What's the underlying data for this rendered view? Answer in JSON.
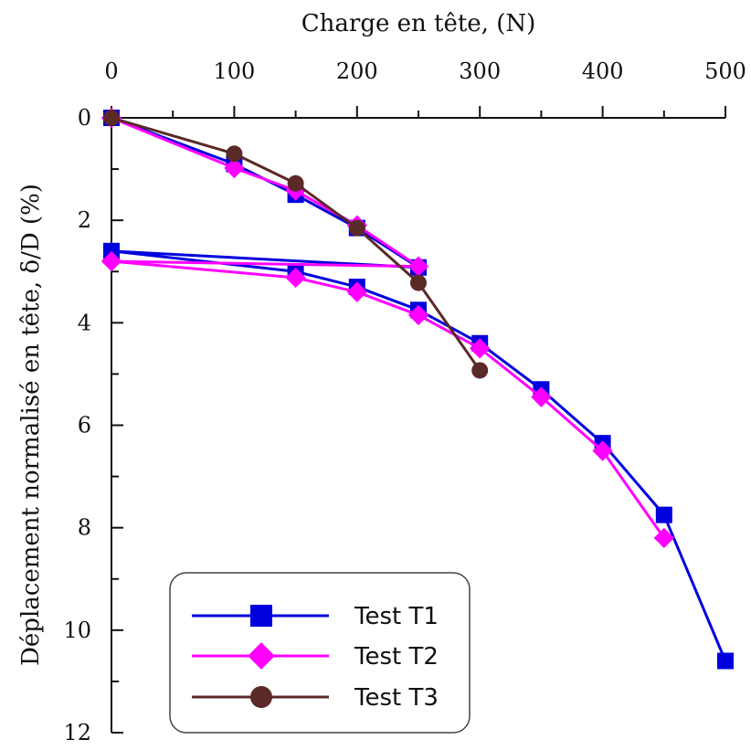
{
  "chart_data": {
    "type": "line",
    "xlabel": "Charge en tête, (N)",
    "ylabel": "Déplacement normalisé en tête, δ/D (%)",
    "xlim": [
      0,
      500
    ],
    "ylim": [
      0,
      12
    ],
    "y_inverted": true,
    "x_axis_position": "top",
    "x_ticks": [
      0,
      100,
      200,
      300,
      400,
      500
    ],
    "x_minor_ticks": [
      50,
      150,
      250,
      350,
      450
    ],
    "y_ticks": [
      0,
      2,
      4,
      6,
      8,
      10,
      12
    ],
    "y_minor_ticks": [
      1,
      3,
      5,
      7,
      9,
      11
    ],
    "grid": false,
    "legend_position": "bottom-left",
    "series": [
      {
        "name": "Test T1",
        "color": "#0000dd",
        "marker": "square",
        "x": [
          0,
          100,
          150,
          200,
          250,
          0,
          150,
          200,
          250,
          300,
          350,
          400,
          450,
          500
        ],
        "y": [
          0,
          0.9,
          1.5,
          2.15,
          2.92,
          2.6,
          3.0,
          3.3,
          3.75,
          4.4,
          5.3,
          6.35,
          7.75,
          10.6
        ]
      },
      {
        "name": "Test T2",
        "color": "#ff00ff",
        "marker": "diamond",
        "x": [
          0,
          100,
          150,
          200,
          250,
          0,
          150,
          200,
          250,
          300,
          350,
          400,
          450
        ],
        "y": [
          0,
          0.98,
          1.42,
          2.1,
          2.9,
          2.8,
          3.12,
          3.4,
          3.85,
          4.5,
          5.45,
          6.5,
          8.2
        ]
      },
      {
        "name": "Test T3",
        "color": "#5a2a27",
        "marker": "circle",
        "x": [
          0,
          100,
          150,
          200,
          250,
          300
        ],
        "y": [
          0,
          0.7,
          1.28,
          2.15,
          3.22,
          4.93
        ]
      }
    ]
  }
}
